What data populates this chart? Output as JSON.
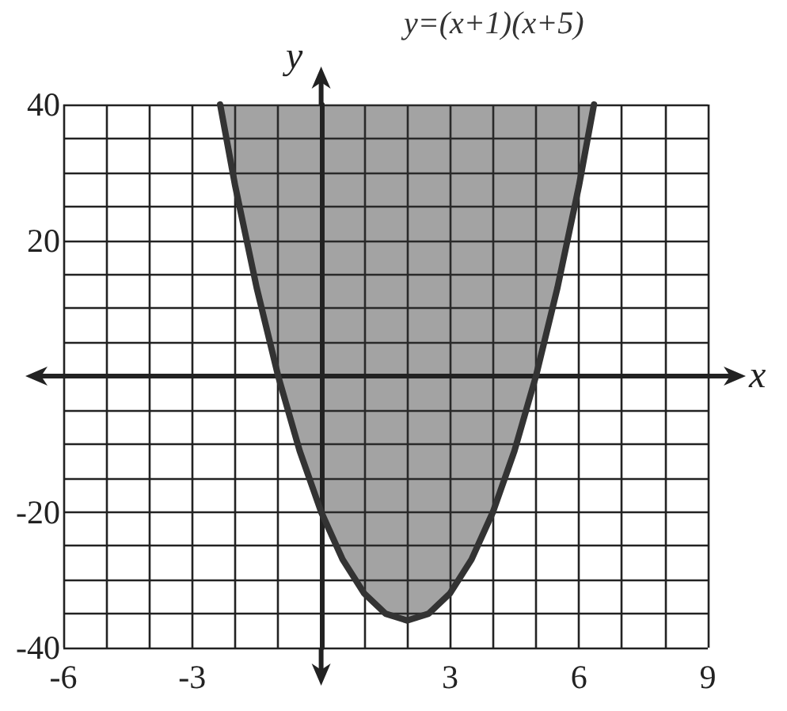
{
  "chart_data": {
    "type": "line",
    "annotations": [
      "y=(x+1)(x+5)"
    ],
    "xlabel": "x",
    "ylabel": "y",
    "series": [
      {
        "color": "#333333",
        "x": [
          -2.35,
          -2,
          -1.5,
          -1,
          -0.5,
          0,
          0.5,
          1,
          1.5,
          2,
          2.5,
          3,
          3.5,
          4,
          4.5,
          5,
          5.5,
          6,
          6.35
        ],
        "values": [
          40,
          28,
          13,
          0,
          -11,
          -20,
          -27,
          -32,
          -35,
          -36,
          -35,
          -32,
          -27,
          -20,
          -11,
          0,
          13,
          28,
          40
        ],
        "lower": [
          40,
          28,
          13,
          0,
          -11,
          -20,
          -27,
          -32,
          -35,
          -36,
          -35,
          -32,
          -27,
          -20,
          -11,
          0,
          13,
          28,
          40
        ],
        "upper": [
          40,
          40,
          40,
          40,
          40,
          40,
          40,
          40,
          40,
          40,
          40,
          40,
          40,
          40,
          40,
          40,
          40,
          40,
          40
        ]
      }
    ],
    "xlim": [
      -6,
      9
    ],
    "ylim": [
      -40,
      40
    ],
    "xticks": [
      -6,
      {
        "value": -5,
        "label": null
      },
      {
        "value": -4,
        "label": null
      },
      -3,
      {
        "value": -2,
        "label": null
      },
      {
        "value": -1,
        "label": null
      },
      {
        "value": 0,
        "label": null
      },
      {
        "value": 1,
        "label": null
      },
      {
        "value": 2,
        "label": null
      },
      3,
      {
        "value": 4,
        "label": null
      },
      {
        "value": 5,
        "label": null
      },
      6,
      {
        "value": 7,
        "label": null
      },
      {
        "value": 8,
        "label": null
      },
      9
    ],
    "yticks": [
      -40,
      {
        "value": -35,
        "label": null
      },
      {
        "value": -30,
        "label": null
      },
      {
        "value": -25,
        "label": null
      },
      -20,
      {
        "value": -15,
        "label": null
      },
      {
        "value": -10,
        "label": null
      },
      {
        "value": -5,
        "label": null
      },
      {
        "value": 0,
        "label": null
      },
      {
        "value": 5,
        "label": null
      },
      {
        "value": 10,
        "label": null
      },
      {
        "value": 15,
        "label": null
      },
      20,
      {
        "value": 25,
        "label": null
      },
      {
        "value": 30,
        "label": null
      },
      {
        "value": 35,
        "label": null
      },
      40
    ],
    "grid": true,
    "marker": "none",
    "line_style": "solid"
  }
}
